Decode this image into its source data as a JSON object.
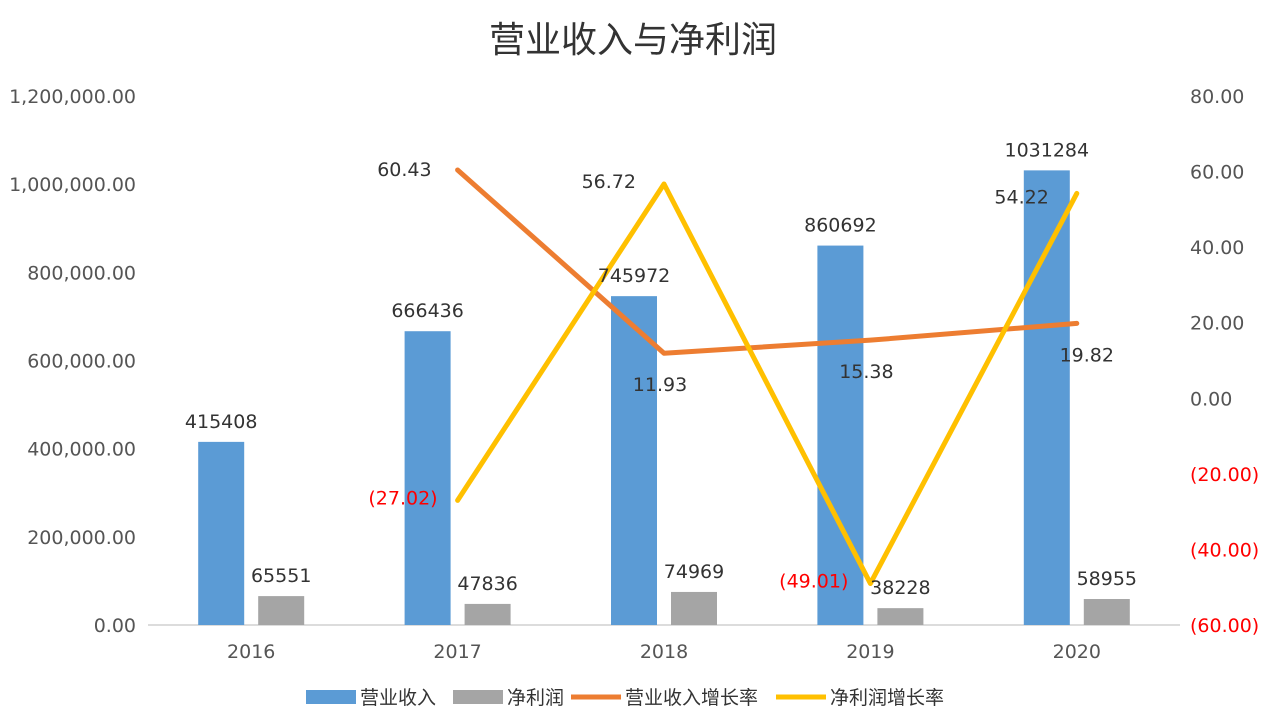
{
  "chart_data": {
    "type": "bar",
    "title": "营业收入与净利润",
    "categories": [
      "2016",
      "2017",
      "2018",
      "2019",
      "2020"
    ],
    "series": [
      {
        "name": "营业收入",
        "type": "bar",
        "axis": "left",
        "color": "#5b9bd5",
        "values": [
          415408,
          666436,
          745972,
          860692,
          1031284
        ],
        "labels": [
          "415408",
          "666436",
          "745972",
          "860692",
          "1031284"
        ]
      },
      {
        "name": "净利润",
        "type": "bar",
        "axis": "left",
        "color": "#a5a5a5",
        "values": [
          65551,
          47836,
          74969,
          38228,
          58955
        ],
        "labels": [
          "65551",
          "47836",
          "74969",
          "38228",
          "58955"
        ]
      },
      {
        "name": "营业收入增长率",
        "type": "line",
        "axis": "right",
        "color": "#ed7d31",
        "values": [
          null,
          60.43,
          11.93,
          15.38,
          19.82
        ],
        "labels": [
          "",
          "60.43",
          "11.93",
          "15.38",
          "19.82"
        ]
      },
      {
        "name": "净利润增长率",
        "type": "line",
        "axis": "right",
        "color": "#ffc000",
        "values": [
          null,
          -27.02,
          56.72,
          -49.01,
          54.22
        ],
        "labels": [
          "",
          "(27.02)",
          "56.72",
          "(49.01)",
          "54.22"
        ]
      }
    ],
    "y_left": {
      "range": [
        0,
        1200000
      ],
      "ticks": [
        0,
        200000,
        400000,
        600000,
        800000,
        1000000,
        1200000
      ],
      "tick_labels": [
        "0.00",
        "200,000.00",
        "400,000.00",
        "600,000.00",
        "800,000.00",
        "1,000,000.00",
        "1,200,000.00"
      ]
    },
    "y_right": {
      "range": [
        -60,
        80
      ],
      "ticks": [
        -60,
        -40,
        -20,
        0,
        20,
        40,
        60,
        80
      ],
      "tick_labels": [
        "(60.00)",
        "(40.00)",
        "(20.00)",
        "0.00",
        "20.00",
        "40.00",
        "60.00",
        "80.00"
      ],
      "negative_color": "#ff0000"
    },
    "grid": false,
    "legend_position": "bottom"
  }
}
